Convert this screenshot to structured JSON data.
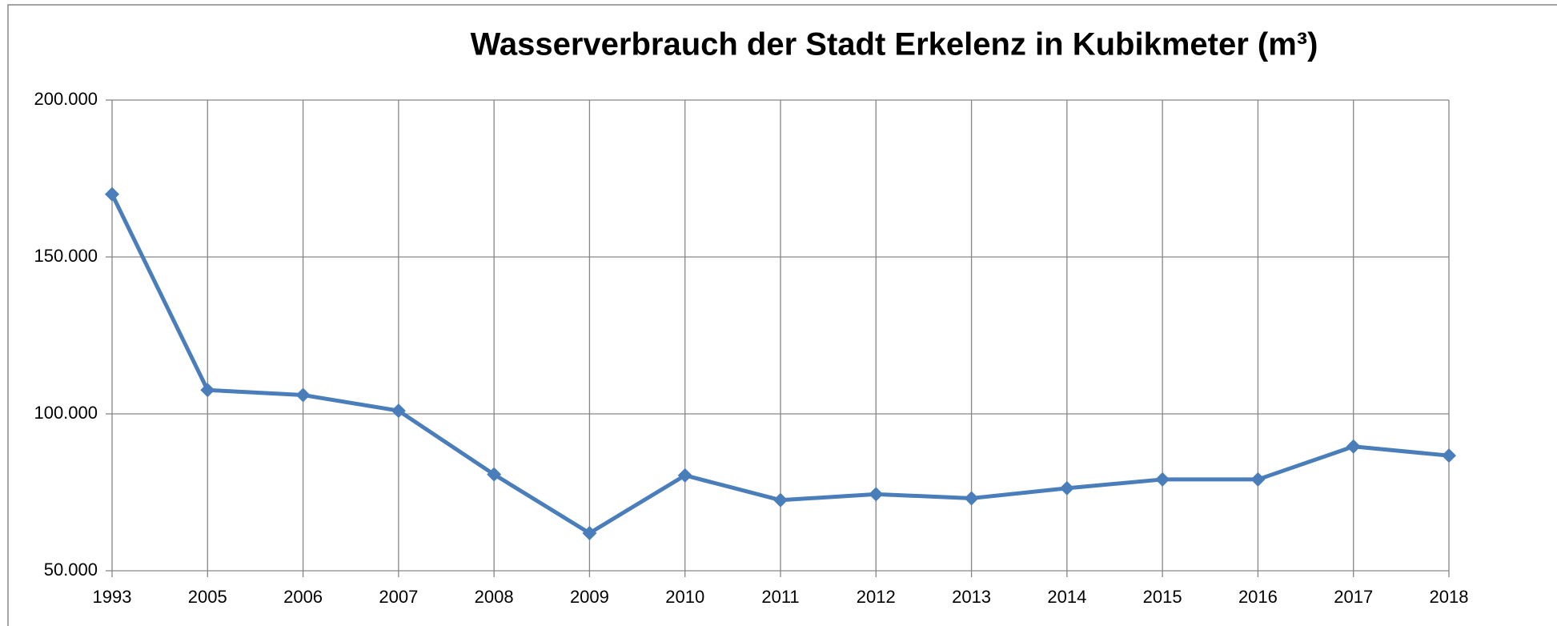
{
  "chart_data": {
    "type": "line",
    "title": "Wasserverbrauch der Stadt Erkelenz in Kubikmeter (m³)",
    "categories": [
      "1993",
      "2005",
      "2006",
      "2007",
      "2008",
      "2009",
      "2010",
      "2011",
      "2012",
      "2013",
      "2014",
      "2015",
      "2016",
      "2017",
      "2018"
    ],
    "series": [
      {
        "name": "Wasserverbrauch",
        "color": "#4a7ebb",
        "values": [
          170000,
          107600,
          106000,
          101000,
          80700,
          62000,
          80400,
          72500,
          74400,
          73100,
          76300,
          79100,
          79100,
          89600,
          86700
        ]
      }
    ],
    "ylim": [
      50000,
      200000
    ],
    "yticks": [
      {
        "value": 50000,
        "label": "50.000"
      },
      {
        "value": 100000,
        "label": "100.000"
      },
      {
        "value": 150000,
        "label": "150.000"
      },
      {
        "value": 200000,
        "label": "200.000"
      }
    ],
    "grid": true,
    "legend": false
  }
}
